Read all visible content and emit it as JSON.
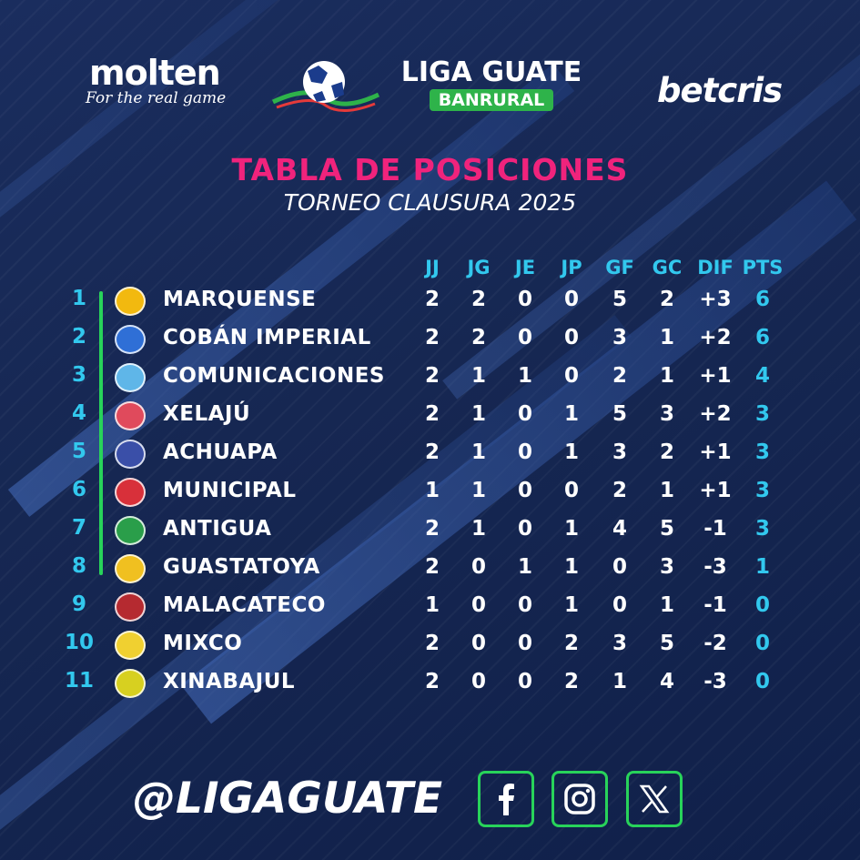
{
  "sponsors": {
    "molten": {
      "name": "molten",
      "tagline": "For the real game"
    },
    "league": {
      "name": "LIGA GUATE",
      "sponsor": "BANRURAL"
    },
    "betting": {
      "name": "betcris"
    }
  },
  "title": "TABLA DE POSICIONES",
  "subtitle": "TORNEO CLAUSURA 2025",
  "columns": [
    "JJ",
    "JG",
    "JE",
    "JP",
    "GF",
    "GC",
    "DIF",
    "PTS"
  ],
  "standings": [
    {
      "pos": "1",
      "team": "MARQUENSE",
      "jj": "2",
      "jg": "2",
      "je": "0",
      "jp": "0",
      "gf": "5",
      "gc": "2",
      "dif": "+3",
      "pts": "6",
      "crest_color": "#f2b90f"
    },
    {
      "pos": "2",
      "team": "COBÁN IMPERIAL",
      "jj": "2",
      "jg": "2",
      "je": "0",
      "jp": "0",
      "gf": "3",
      "gc": "1",
      "dif": "+2",
      "pts": "6",
      "crest_color": "#2f6fd6"
    },
    {
      "pos": "3",
      "team": "COMUNICACIONES",
      "jj": "2",
      "jg": "1",
      "je": "1",
      "jp": "0",
      "gf": "2",
      "gc": "1",
      "dif": "+1",
      "pts": "4",
      "crest_color": "#5fb6e8"
    },
    {
      "pos": "4",
      "team": "XELAJÚ",
      "jj": "2",
      "jg": "1",
      "je": "0",
      "jp": "1",
      "gf": "5",
      "gc": "3",
      "dif": "+2",
      "pts": "3",
      "crest_color": "#e04a5c"
    },
    {
      "pos": "5",
      "team": "ACHUAPA",
      "jj": "2",
      "jg": "1",
      "je": "0",
      "jp": "1",
      "gf": "3",
      "gc": "2",
      "dif": "+1",
      "pts": "3",
      "crest_color": "#3a4fa8"
    },
    {
      "pos": "6",
      "team": "MUNICIPAL",
      "jj": "1",
      "jg": "1",
      "je": "0",
      "jp": "0",
      "gf": "2",
      "gc": "1",
      "dif": "+1",
      "pts": "3",
      "crest_color": "#d8303a"
    },
    {
      "pos": "7",
      "team": "ANTIGUA",
      "jj": "2",
      "jg": "1",
      "je": "0",
      "jp": "1",
      "gf": "4",
      "gc": "5",
      "dif": "-1",
      "pts": "3",
      "crest_color": "#2a9e4a"
    },
    {
      "pos": "8",
      "team": "GUASTATOYA",
      "jj": "2",
      "jg": "0",
      "je": "1",
      "jp": "1",
      "gf": "0",
      "gc": "3",
      "dif": "-3",
      "pts": "1",
      "crest_color": "#f0c020"
    },
    {
      "pos": "9",
      "team": "MALACATECO",
      "jj": "1",
      "jg": "0",
      "je": "0",
      "jp": "1",
      "gf": "0",
      "gc": "1",
      "dif": "-1",
      "pts": "0",
      "crest_color": "#b52a30"
    },
    {
      "pos": "10",
      "team": "MIXCO",
      "jj": "2",
      "jg": "0",
      "je": "0",
      "jp": "2",
      "gf": "3",
      "gc": "5",
      "dif": "-2",
      "pts": "0",
      "crest_color": "#f0d030"
    },
    {
      "pos": "11",
      "team": "XINABAJUL",
      "jj": "2",
      "jg": "0",
      "je": "0",
      "jp": "2",
      "gf": "1",
      "gc": "4",
      "dif": "-3",
      "pts": "0",
      "crest_color": "#d7d020"
    }
  ],
  "footer": {
    "handle": "@LIGAGUATE",
    "socials": [
      "facebook-icon",
      "instagram-icon",
      "x-icon"
    ]
  },
  "colors": {
    "background": "#14244d",
    "title": "#f0237c",
    "accent": "#32c8ee",
    "qualify_bar": "#28d35a",
    "sponsor_green": "#2eb34a"
  }
}
